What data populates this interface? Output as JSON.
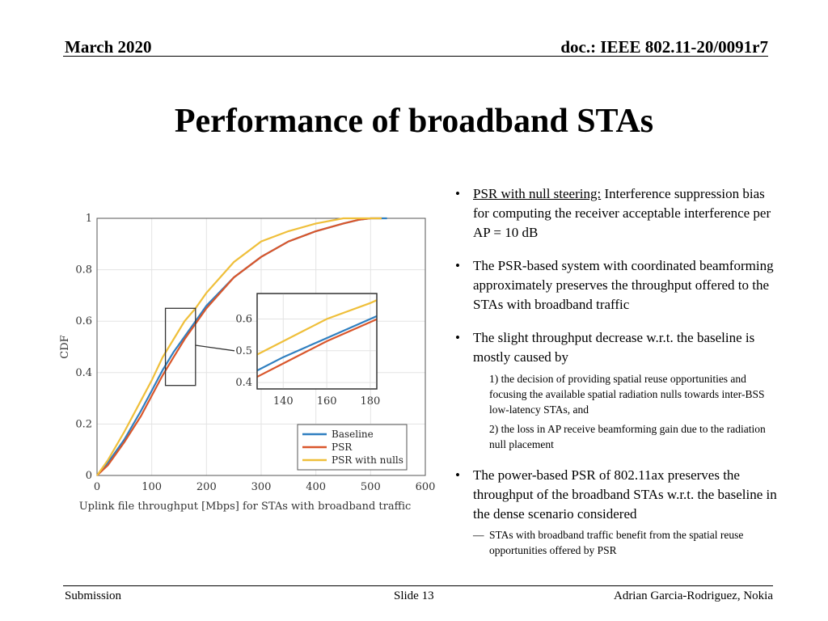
{
  "header": {
    "date": "March 2020",
    "doc": "doc.: IEEE 802.11-20/0091r7"
  },
  "title": "Performance of broadband STAs",
  "bullets": {
    "b1_label": "PSR with null steering:",
    "b1_text": " Interference suppression bias for computing the receiver acceptable interference per AP = 10 dB",
    "b2_text": "The PSR-based system with coordinated beamforming approximately preserves the throughput offered to the STAs with broadband traffic",
    "b3_text": "The slight throughput decrease w.r.t. the baseline is mostly caused by",
    "b3_sub1": "1) the decision of providing spatial reuse opportunities and focusing the available spatial radiation nulls towards inter-BSS low-latency STAs, and",
    "b3_sub2": "2) the loss in AP receive beamforming gain due to the radiation null placement",
    "b4_text": "The power-based PSR of 802.11ax preserves the throughput of the broadband STAs w.r.t. the baseline in the dense scenario considered",
    "b4_dash": "—",
    "b4_sub": "STAs with broadband traffic benefit from the spatial reuse opportunities offered by PSR",
    "bullet_char": "•"
  },
  "footer": {
    "left": "Submission",
    "center": "Slide 13",
    "right": "Adrian Garcia-Rodriguez, Nokia"
  },
  "chart_data": {
    "type": "line",
    "xlabel": "Uplink file throughput [Mbps] for STAs with broadband traffic",
    "ylabel": "CDF",
    "xlim": [
      0,
      600
    ],
    "ylim": [
      0,
      1
    ],
    "xticks": [
      0,
      100,
      200,
      300,
      400,
      500,
      600
    ],
    "yticks": [
      0,
      0.2,
      0.4,
      0.6,
      0.8,
      1
    ],
    "xtick_labels": [
      "0",
      "100",
      "200",
      "300",
      "400",
      "500",
      "600"
    ],
    "ytick_labels": [
      "0",
      "0.2",
      "0.4",
      "0.6",
      "0.8",
      "1"
    ],
    "legend_position": "bottom-right",
    "series": [
      {
        "name": "Baseline",
        "color": "#2f7fc0",
        "x": [
          0,
          20,
          50,
          80,
          100,
          120,
          140,
          160,
          180,
          200,
          250,
          300,
          350,
          400,
          450,
          480,
          500,
          530
        ],
        "y": [
          0,
          0.05,
          0.14,
          0.25,
          0.33,
          0.41,
          0.48,
          0.54,
          0.6,
          0.66,
          0.77,
          0.85,
          0.91,
          0.95,
          0.98,
          0.995,
          1.0,
          1.0
        ]
      },
      {
        "name": "PSR",
        "color": "#d9562b",
        "x": [
          0,
          20,
          50,
          80,
          100,
          120,
          140,
          160,
          180,
          200,
          250,
          300,
          350,
          400,
          450,
          480,
          500,
          520
        ],
        "y": [
          0,
          0.04,
          0.13,
          0.23,
          0.31,
          0.39,
          0.46,
          0.53,
          0.59,
          0.65,
          0.77,
          0.85,
          0.91,
          0.95,
          0.98,
          0.995,
          1.0,
          1.0
        ]
      },
      {
        "name": "PSR with nulls",
        "color": "#efbf3a",
        "x": [
          0,
          20,
          50,
          80,
          100,
          120,
          140,
          160,
          180,
          200,
          250,
          300,
          350,
          400,
          450,
          480,
          500,
          520
        ],
        "y": [
          0,
          0.06,
          0.17,
          0.29,
          0.37,
          0.46,
          0.53,
          0.6,
          0.65,
          0.71,
          0.83,
          0.91,
          0.95,
          0.98,
          1.0,
          1.0,
          1.0,
          1.0
        ]
      }
    ],
    "zoom_region": {
      "xlim": [
        125,
        180
      ],
      "ylim": [
        0.35,
        0.65
      ]
    },
    "inset": {
      "xlim": [
        128,
        183
      ],
      "ylim": [
        0.38,
        0.68
      ],
      "xticks": [
        140,
        160,
        180
      ],
      "yticks": [
        0.4,
        0.5,
        0.6
      ],
      "xtick_labels": [
        "140",
        "160",
        "180"
      ],
      "ytick_labels": [
        "0.4",
        "0.5",
        "0.6"
      ]
    }
  }
}
